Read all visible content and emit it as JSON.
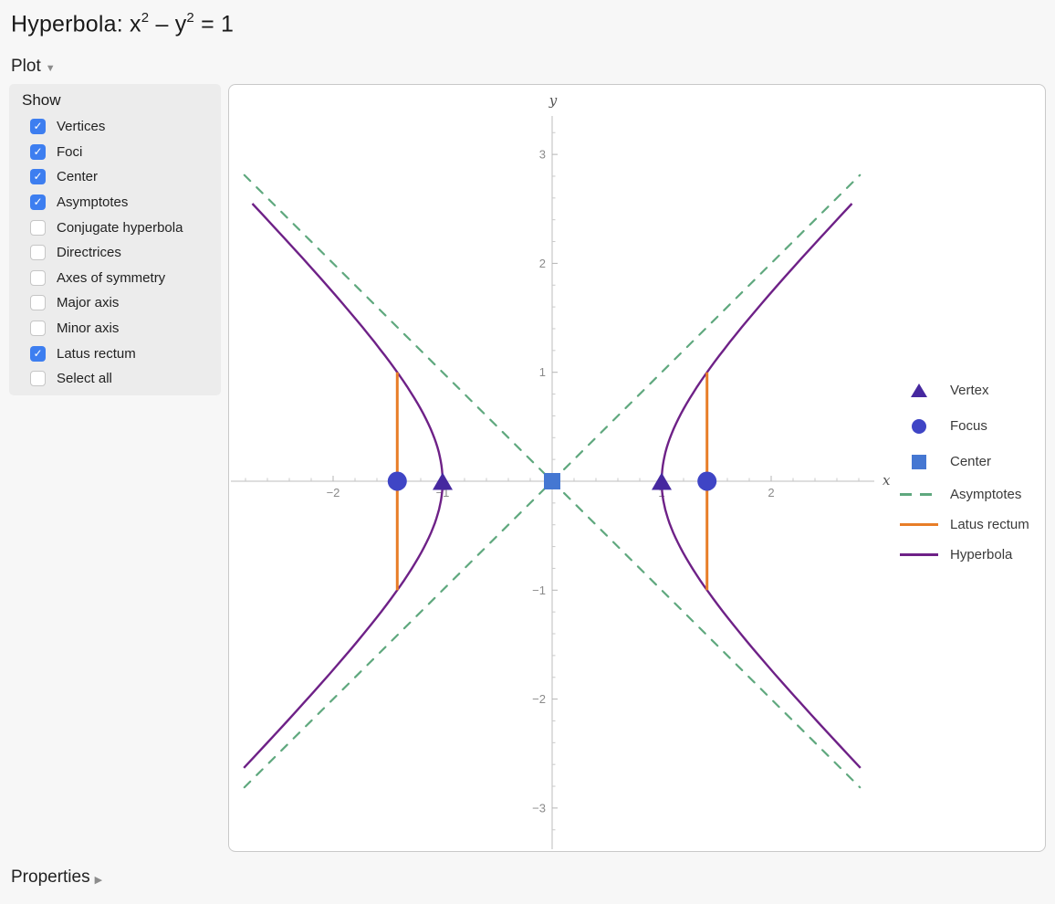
{
  "header": {
    "title_prefix": "Hyperbola: ",
    "equation": {
      "x": "x",
      "x_sup": "2",
      "minus": " – ",
      "y": "y",
      "y_sup": "2",
      "rhs": " = 1"
    }
  },
  "sections": {
    "plot_label": "Plot",
    "plot_state": "expanded",
    "properties_label": "Properties",
    "properties_state": "collapsed"
  },
  "show_panel": {
    "heading": "Show",
    "checkbox_color": "#3d7ef0",
    "check_glyph": "✓",
    "items": [
      {
        "label": "Vertices",
        "checked": true
      },
      {
        "label": "Foci",
        "checked": true
      },
      {
        "label": "Center",
        "checked": true
      },
      {
        "label": "Asymptotes",
        "checked": true
      },
      {
        "label": "Conjugate hyperbola",
        "checked": false
      },
      {
        "label": "Directrices",
        "checked": false
      },
      {
        "label": "Axes of symmetry",
        "checked": false
      },
      {
        "label": "Major axis",
        "checked": false
      },
      {
        "label": "Minor axis",
        "checked": false
      },
      {
        "label": "Latus rectum",
        "checked": true
      },
      {
        "label": "Select all",
        "checked": false
      }
    ]
  },
  "chart_data": {
    "type": "line",
    "title": "Hyperbola: x^2 - y^2 = 1",
    "equation": "x^2 - y^2 = 1",
    "a": 1,
    "b": 1,
    "c": 1.4142,
    "xlabel": "x",
    "ylabel": "y",
    "xlim": [
      -2.95,
      2.95
    ],
    "ylim": [
      -3.37,
      3.36
    ],
    "x_major_ticks": [
      -2,
      -1,
      1,
      2
    ],
    "y_major_ticks": [
      -3,
      -2,
      -1,
      1,
      2,
      3
    ],
    "minor_tick_step": 0.2,
    "grid": false,
    "legend_position": "right",
    "axis_color": "#c9c9c9",
    "tick_label_color": "#8a8a8a",
    "hyperbola": {
      "name": "Hyperbola",
      "color": "#6e2187",
      "t_max": 1.695,
      "branches": [
        "left",
        "right"
      ]
    },
    "asymptotes": {
      "name": "Asymptotes",
      "color": "#5fa87e",
      "style": "dashed",
      "slopes": [
        1,
        -1
      ],
      "extent": 2.81
    },
    "latus_rectum": {
      "name": "Latus rectum",
      "color": "#e87d28",
      "x_positions": [
        -1.4142,
        1.4142
      ],
      "y_range": [
        -1,
        1
      ]
    },
    "vertices": {
      "name": "Vertices",
      "shape": "triangle",
      "color": "#46289f",
      "points": [
        [
          -1,
          0
        ],
        [
          1,
          0
        ]
      ]
    },
    "foci": {
      "name": "Foci",
      "shape": "circle",
      "color": "#3f45c5",
      "points": [
        [
          -1.4142,
          0
        ],
        [
          1.4142,
          0
        ]
      ]
    },
    "center": {
      "name": "Center",
      "shape": "square",
      "color": "#4577d2",
      "points": [
        [
          0,
          0
        ]
      ]
    },
    "legend": [
      {
        "label": "Vertex",
        "symbol": "triangle",
        "color": "#46289f"
      },
      {
        "label": "Focus",
        "symbol": "circle",
        "color": "#3f45c5"
      },
      {
        "label": "Center",
        "symbol": "square",
        "color": "#4577d2"
      },
      {
        "label": "Asymptotes",
        "symbol": "dashed-line",
        "color": "#5fa87e"
      },
      {
        "label": "Latus rectum",
        "symbol": "solid-line",
        "color": "#e87d28"
      },
      {
        "label": "Hyperbola",
        "symbol": "solid-line",
        "color": "#6e2187"
      }
    ]
  }
}
